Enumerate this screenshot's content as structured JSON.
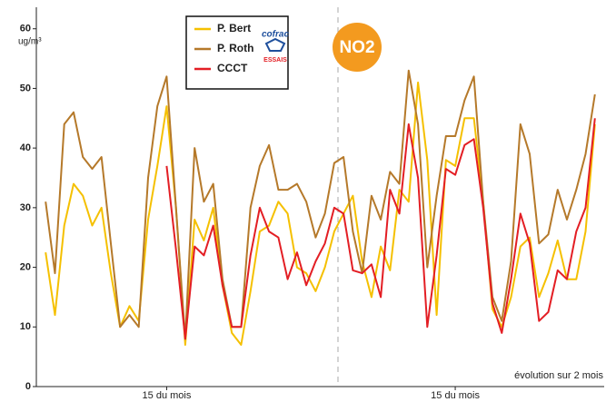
{
  "chart_data": {
    "type": "line",
    "y_label": "ug/m³",
    "annotation": "évolution sur 2 mois",
    "badge": "NO2",
    "logo": {
      "top": "cofrac",
      "bottom": "ESSAIS"
    },
    "categories": [
      null,
      null,
      null,
      null,
      null,
      null,
      null,
      null,
      null,
      null,
      null,
      null,
      null,
      "15 du mois",
      null,
      null,
      null,
      null,
      null,
      null,
      null,
      null,
      null,
      null,
      null,
      null,
      null,
      null,
      null,
      null,
      null,
      null,
      null,
      null,
      null,
      null,
      null,
      null,
      null,
      null,
      null,
      null,
      null,
      null,
      "15 du mois",
      null,
      null,
      null,
      null,
      null,
      null,
      null,
      null,
      null,
      null,
      null,
      null,
      null,
      null,
      null
    ],
    "ylim": [
      0,
      63
    ],
    "yticks": [
      0,
      10,
      20,
      30,
      40,
      50,
      60
    ],
    "series": [
      {
        "name": "P. Bert",
        "color": "#f5c000",
        "values": [
          22.5,
          12,
          27,
          34,
          32,
          27,
          30,
          19,
          10,
          13.5,
          11,
          28,
          37,
          47,
          30,
          7,
          28,
          24.5,
          30,
          17,
          9,
          7,
          16,
          26,
          27,
          31,
          29,
          20,
          19,
          16,
          20,
          26,
          29,
          32,
          21,
          15,
          23.5,
          19.5,
          33,
          31,
          51,
          38,
          12,
          38,
          37,
          45,
          45,
          31,
          13,
          10,
          15,
          23.5,
          25,
          15,
          19,
          24.5,
          18,
          18,
          26,
          44
        ]
      },
      {
        "name": "P. Roth",
        "color": "#b5792a",
        "values": [
          31,
          19,
          44,
          46,
          38.5,
          36.5,
          38.5,
          24,
          10,
          12,
          10,
          35,
          47,
          52,
          30,
          8,
          40,
          31,
          34,
          18,
          10,
          10,
          30,
          37,
          40.5,
          33,
          33,
          34,
          31,
          25,
          29,
          37.5,
          38.5,
          26,
          19,
          32,
          28,
          36,
          34,
          53,
          44,
          20,
          32,
          42,
          42,
          48,
          52,
          31,
          15,
          11,
          21,
          44,
          39,
          24,
          25.5,
          33,
          28,
          33,
          39,
          49
        ]
      },
      {
        "name": "CCCT",
        "color": "#e31e24",
        "values": [
          null,
          null,
          null,
          null,
          null,
          null,
          null,
          null,
          null,
          null,
          null,
          null,
          null,
          37,
          23,
          8,
          23.5,
          22,
          27,
          17,
          10,
          10,
          22,
          30,
          26,
          25,
          18,
          22.5,
          17,
          21,
          24,
          30,
          29,
          19.5,
          19,
          20.5,
          15,
          33,
          29,
          44,
          35,
          10,
          22,
          36.5,
          35.5,
          40.5,
          41.5,
          30,
          14,
          9,
          18,
          29,
          24,
          11,
          12.5,
          19.5,
          18,
          26,
          30,
          45
        ]
      }
    ]
  }
}
